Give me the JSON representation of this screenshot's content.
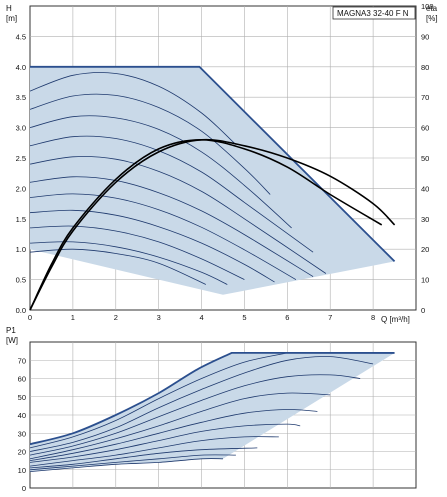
{
  "product_label": "MAGNA3 32-40 F N",
  "colors": {
    "envelope_fill": "#c9d9e8",
    "envelope_edge": "#2b4f8e",
    "curve": "#1f3a6e",
    "eta": "#000000",
    "grid": "#b0b0b0"
  },
  "chart_data": [
    {
      "type": "line",
      "title": "MAGNA3 32-40 F N",
      "xlabel": "Q [m³/h]",
      "ylabel_left": "H\n[m]",
      "ylabel_right": "eta\n[%]",
      "xlim": [
        0,
        9
      ],
      "ylim": [
        0,
        5
      ],
      "y2lim": [
        0,
        100
      ],
      "xticks": [
        "0",
        "1",
        "2",
        "3",
        "4",
        "5",
        "6",
        "7",
        "8"
      ],
      "yticks": [
        "0.0",
        "0.5",
        "1.0",
        "1.5",
        "2.0",
        "2.5",
        "3.0",
        "3.5",
        "4.0",
        "4.5"
      ],
      "y2ticks": [
        "0",
        "10",
        "20",
        "30",
        "40",
        "50",
        "60",
        "70",
        "80",
        "90",
        "100"
      ],
      "envelope": {
        "boundary": [
          [
            0,
            1.0
          ],
          [
            0,
            4.0
          ],
          [
            3.95,
            4.0
          ],
          [
            8.5,
            0.8
          ],
          [
            4.5,
            0.25
          ]
        ],
        "top_head_m": 4.0
      },
      "series": [
        {
          "values": [
            [
              0,
              3.6
            ],
            [
              1,
              3.86
            ],
            [
              2,
              3.89
            ],
            [
              3,
              3.68
            ],
            [
              4,
              3.24
            ],
            [
              4.8,
              2.72
            ]
          ]
        },
        {
          "values": [
            [
              0,
              3.3
            ],
            [
              1,
              3.52
            ],
            [
              2,
              3.53
            ],
            [
              3,
              3.33
            ],
            [
              4,
              2.94
            ],
            [
              5,
              2.33
            ],
            [
              5.6,
              1.9
            ]
          ]
        },
        {
          "values": [
            [
              0,
              3.0
            ],
            [
              1,
              3.18
            ],
            [
              2,
              3.16
            ],
            [
              3,
              2.97
            ],
            [
              4,
              2.6
            ],
            [
              5,
              2.05
            ],
            [
              6.1,
              1.35
            ]
          ]
        },
        {
          "values": [
            [
              0,
              2.7
            ],
            [
              1,
              2.85
            ],
            [
              2,
              2.82
            ],
            [
              3,
              2.62
            ],
            [
              4,
              2.27
            ],
            [
              5,
              1.77
            ],
            [
              6.6,
              0.95
            ]
          ]
        },
        {
          "values": [
            [
              0,
              2.4
            ],
            [
              1,
              2.52
            ],
            [
              2,
              2.48
            ],
            [
              3,
              2.28
            ],
            [
              4,
              1.95
            ],
            [
              5,
              1.5
            ],
            [
              6.9,
              0.6
            ]
          ]
        },
        {
          "values": [
            [
              0,
              2.1
            ],
            [
              1,
              2.19
            ],
            [
              2,
              2.13
            ],
            [
              3,
              1.93
            ],
            [
              4,
              1.63
            ],
            [
              5,
              1.24
            ],
            [
              6.6,
              0.55
            ]
          ]
        },
        {
          "values": [
            [
              0,
              1.85
            ],
            [
              1,
              1.91
            ],
            [
              2,
              1.84
            ],
            [
              3,
              1.65
            ],
            [
              4,
              1.36
            ],
            [
              5,
              0.99
            ],
            [
              6.2,
              0.5
            ]
          ]
        },
        {
          "values": [
            [
              0,
              1.6
            ],
            [
              1,
              1.64
            ],
            [
              2,
              1.56
            ],
            [
              3,
              1.37
            ],
            [
              4,
              1.1
            ],
            [
              5,
              0.75
            ],
            [
              5.7,
              0.46
            ]
          ]
        },
        {
          "values": [
            [
              0,
              1.35
            ],
            [
              1,
              1.38
            ],
            [
              2,
              1.3
            ],
            [
              3,
              1.12
            ],
            [
              4,
              0.84
            ],
            [
              5.0,
              0.5
            ]
          ]
        },
        {
          "values": [
            [
              0,
              1.1
            ],
            [
              1,
              1.12
            ],
            [
              2,
              1.04
            ],
            [
              3,
              0.87
            ],
            [
              4,
              0.62
            ],
            [
              4.6,
              0.42
            ]
          ]
        },
        {
          "values": [
            [
              0,
              0.95
            ],
            [
              1,
              1.0
            ],
            [
              2,
              0.93
            ],
            [
              3,
              0.77
            ],
            [
              4.1,
              0.42
            ]
          ]
        }
      ],
      "eta_series": [
        {
          "values": [
            [
              0,
              0
            ],
            [
              0.5,
              14
            ],
            [
              1,
              26
            ],
            [
              2,
              42
            ],
            [
              3,
              52
            ],
            [
              4,
              56
            ],
            [
              5,
              54
            ],
            [
              6,
              50
            ],
            [
              7,
              44
            ],
            [
              8,
              35
            ],
            [
              8.5,
              28
            ]
          ]
        },
        {
          "values": [
            [
              0,
              0
            ],
            [
              0.5,
              15
            ],
            [
              1,
              27
            ],
            [
              2,
              43
            ],
            [
              3,
              53
            ],
            [
              4,
              56
            ],
            [
              5,
              53
            ],
            [
              6,
              47
            ],
            [
              7,
              38
            ],
            [
              8.2,
              28
            ]
          ]
        }
      ]
    },
    {
      "type": "line",
      "title": "",
      "xlabel": "",
      "ylabel": "P1\n[W]",
      "xlim": [
        0,
        9
      ],
      "ylim": [
        0,
        80
      ],
      "yticks": [
        "0",
        "10",
        "20",
        "30",
        "40",
        "50",
        "60",
        "70"
      ],
      "envelope": {
        "top_power_w": 74
      },
      "series": [
        {
          "values": [
            [
              0,
              24
            ],
            [
              1,
              30
            ],
            [
              2,
              40
            ],
            [
              3,
              52
            ],
            [
              3.9,
              65
            ],
            [
              4.7,
              74
            ]
          ]
        },
        {
          "values": [
            [
              0,
              22
            ],
            [
              1,
              28
            ],
            [
              2,
              37
            ],
            [
              3,
              49
            ],
            [
              4,
              60
            ],
            [
              5,
              69
            ],
            [
              6,
              74
            ]
          ]
        },
        {
          "values": [
            [
              0,
              20
            ],
            [
              1,
              25
            ],
            [
              2,
              33
            ],
            [
              3,
              44
            ],
            [
              4,
              54
            ],
            [
              5,
              63
            ],
            [
              6,
              70
            ],
            [
              7,
              72
            ],
            [
              8,
              68
            ]
          ]
        },
        {
          "values": [
            [
              0,
              18
            ],
            [
              1,
              23
            ],
            [
              2,
              30
            ],
            [
              3,
              39
            ],
            [
              4,
              48
            ],
            [
              5,
              56
            ],
            [
              6,
              61
            ],
            [
              7,
              62
            ],
            [
              7.7,
              60
            ]
          ]
        },
        {
          "values": [
            [
              0,
              16
            ],
            [
              1,
              21
            ],
            [
              2,
              27
            ],
            [
              3,
              34
            ],
            [
              4,
              42
            ],
            [
              5,
              49
            ],
            [
              6,
              52
            ],
            [
              7,
              51
            ]
          ]
        },
        {
          "values": [
            [
              0,
              15
            ],
            [
              1,
              19
            ],
            [
              2,
              24
            ],
            [
              3,
              30
            ],
            [
              4,
              36
            ],
            [
              5,
              41
            ],
            [
              6,
              43
            ],
            [
              6.7,
              42
            ]
          ]
        },
        {
          "values": [
            [
              0,
              14
            ],
            [
              1,
              17
            ],
            [
              2,
              21
            ],
            [
              3,
              26
            ],
            [
              4,
              31
            ],
            [
              5,
              34
            ],
            [
              6,
              35
            ],
            [
              6.3,
              34
            ]
          ]
        },
        {
          "values": [
            [
              0,
              12
            ],
            [
              1,
              15
            ],
            [
              2,
              18
            ],
            [
              3,
              22
            ],
            [
              4,
              26
            ],
            [
              5,
              28
            ],
            [
              5.8,
              28
            ]
          ]
        },
        {
          "values": [
            [
              0,
              11
            ],
            [
              1,
              13
            ],
            [
              2,
              16
            ],
            [
              3,
              19
            ],
            [
              4,
              21
            ],
            [
              5.3,
              22
            ]
          ]
        },
        {
          "values": [
            [
              0,
              10
            ],
            [
              1,
              12
            ],
            [
              2,
              14
            ],
            [
              3,
              16
            ],
            [
              4,
              18
            ],
            [
              4.8,
              18
            ]
          ]
        },
        {
          "values": [
            [
              0,
              9
            ],
            [
              1,
              11
            ],
            [
              2,
              13
            ],
            [
              3,
              14
            ],
            [
              4,
              16
            ],
            [
              4.5,
              16
            ]
          ]
        }
      ]
    }
  ]
}
